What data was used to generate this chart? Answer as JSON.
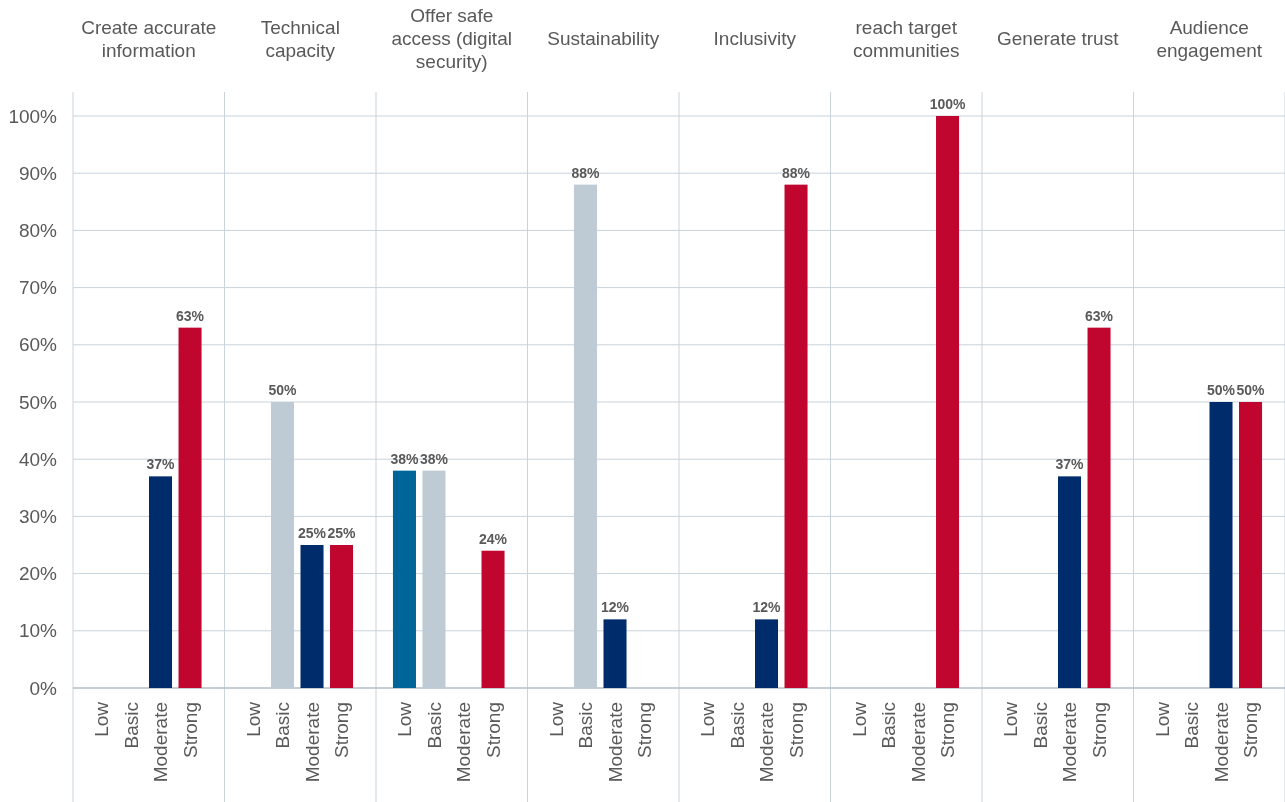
{
  "chart_data": [
    {
      "type": "bar",
      "title": "Create accurate information",
      "categories": [
        "Low",
        "Basic",
        "Moderate",
        "Strong"
      ],
      "values": [
        null,
        null,
        37,
        63
      ],
      "colors": [
        null,
        null,
        "#002c6b",
        "#c0062f"
      ],
      "ylim": [
        0,
        100
      ],
      "yticks": [
        {
          "value": 0,
          "label": "0%"
        },
        {
          "value": 10,
          "label": "10%"
        },
        {
          "value": 20,
          "label": "20%"
        },
        {
          "value": 30,
          "label": "30%"
        },
        {
          "value": 40,
          "label": "40%"
        },
        {
          "value": 50,
          "label": "50%"
        },
        {
          "value": 60,
          "label": "60%"
        },
        {
          "value": 70,
          "label": "70%"
        },
        {
          "value": 80,
          "label": "80%"
        },
        {
          "value": 90,
          "label": "90%"
        },
        {
          "value": 100,
          "label": "100%"
        }
      ],
      "value_labels": [
        null,
        null,
        "37%",
        "63%"
      ],
      "grid": "y"
    },
    {
      "type": "bar",
      "title": "Technical capacity",
      "categories": [
        "Low",
        "Basic",
        "Moderate",
        "Strong"
      ],
      "values": [
        null,
        50,
        25,
        25
      ],
      "colors": [
        null,
        "#bfcbd4",
        "#002c6b",
        "#c0062f"
      ],
      "ylim": [
        0,
        100
      ],
      "yticks": [
        0,
        10,
        20,
        30,
        40,
        50,
        60,
        70,
        80,
        90,
        100
      ],
      "value_labels": [
        null,
        "50%",
        "25%",
        "25%"
      ],
      "grid": "y",
      "tick_labels": "x"
    },
    {
      "type": "bar",
      "title": "Offer safe access (digital security)",
      "categories": [
        "Low",
        "Basic",
        "Moderate",
        "Strong"
      ],
      "values": [
        38,
        38,
        null,
        24
      ],
      "colors": [
        "#006699",
        "#bfcbd4",
        null,
        "#c0062f"
      ],
      "ylim": [
        0,
        100
      ],
      "yticks": [
        0,
        10,
        20,
        30,
        40,
        50,
        60,
        70,
        80,
        90,
        100
      ],
      "value_labels": [
        "38%",
        "38%",
        null,
        "24%"
      ],
      "grid": "y",
      "tick_labels": "x"
    },
    {
      "type": "bar",
      "title": "Sustainability",
      "categories": [
        "Low",
        "Basic",
        "Moderate",
        "Strong"
      ],
      "values": [
        null,
        88,
        12,
        null
      ],
      "colors": [
        null,
        "#bfcbd4",
        "#002c6b",
        null
      ],
      "ylim": [
        0,
        100
      ],
      "yticks": [
        0,
        10,
        20,
        30,
        40,
        50,
        60,
        70,
        80,
        90,
        100
      ],
      "value_labels": [
        null,
        "88%",
        "12%",
        null
      ],
      "grid": "y",
      "tick_labels": "x"
    },
    {
      "type": "bar",
      "title": "Inclusivity",
      "categories": [
        "Low",
        "Basic",
        "Moderate",
        "Strong"
      ],
      "values": [
        null,
        null,
        12,
        88
      ],
      "colors": [
        null,
        null,
        "#002c6b",
        "#c0062f"
      ],
      "ylim": [
        0,
        100
      ],
      "yticks": [
        0,
        10,
        20,
        30,
        40,
        50,
        60,
        70,
        80,
        90,
        100
      ],
      "value_labels": [
        null,
        null,
        "12%",
        "88%"
      ],
      "grid": "y",
      "tick_labels": "x"
    },
    {
      "type": "bar",
      "title": "reach target communities",
      "categories": [
        "Low",
        "Basic",
        "Moderate",
        "Strong"
      ],
      "values": [
        null,
        null,
        null,
        100
      ],
      "colors": [
        null,
        null,
        null,
        "#c0062f"
      ],
      "ylim": [
        0,
        100
      ],
      "yticks": [
        0,
        10,
        20,
        30,
        40,
        50,
        60,
        70,
        80,
        90,
        100
      ],
      "value_labels": [
        null,
        null,
        null,
        "100%"
      ],
      "grid": "y",
      "tick_labels": "x"
    },
    {
      "type": "bar",
      "title": "Generate trust",
      "categories": [
        "Low",
        "Basic",
        "Moderate",
        "Strong"
      ],
      "values": [
        null,
        null,
        37,
        63
      ],
      "colors": [
        null,
        null,
        "#002c6b",
        "#c0062f"
      ],
      "ylim": [
        0,
        100
      ],
      "yticks": [
        0,
        10,
        20,
        30,
        40,
        50,
        60,
        70,
        80,
        90,
        100
      ],
      "value_labels": [
        null,
        null,
        "37%",
        "63%"
      ],
      "grid": "y",
      "tick_labels": "x"
    },
    {
      "type": "bar",
      "title": "Audience engagement",
      "categories": [
        "Low",
        "Basic",
        "Moderate",
        "Strong"
      ],
      "values": [
        null,
        null,
        50,
        50
      ],
      "colors": [
        null,
        null,
        "#002c6b",
        "#c0062f"
      ],
      "ylim": [
        0,
        100
      ],
      "yticks": [
        0,
        10,
        20,
        30,
        40,
        50,
        60,
        70,
        80,
        90,
        100
      ],
      "value_labels": [
        null,
        null,
        "50%",
        "50%"
      ],
      "grid": "y",
      "tick_labels": "x"
    }
  ]
}
